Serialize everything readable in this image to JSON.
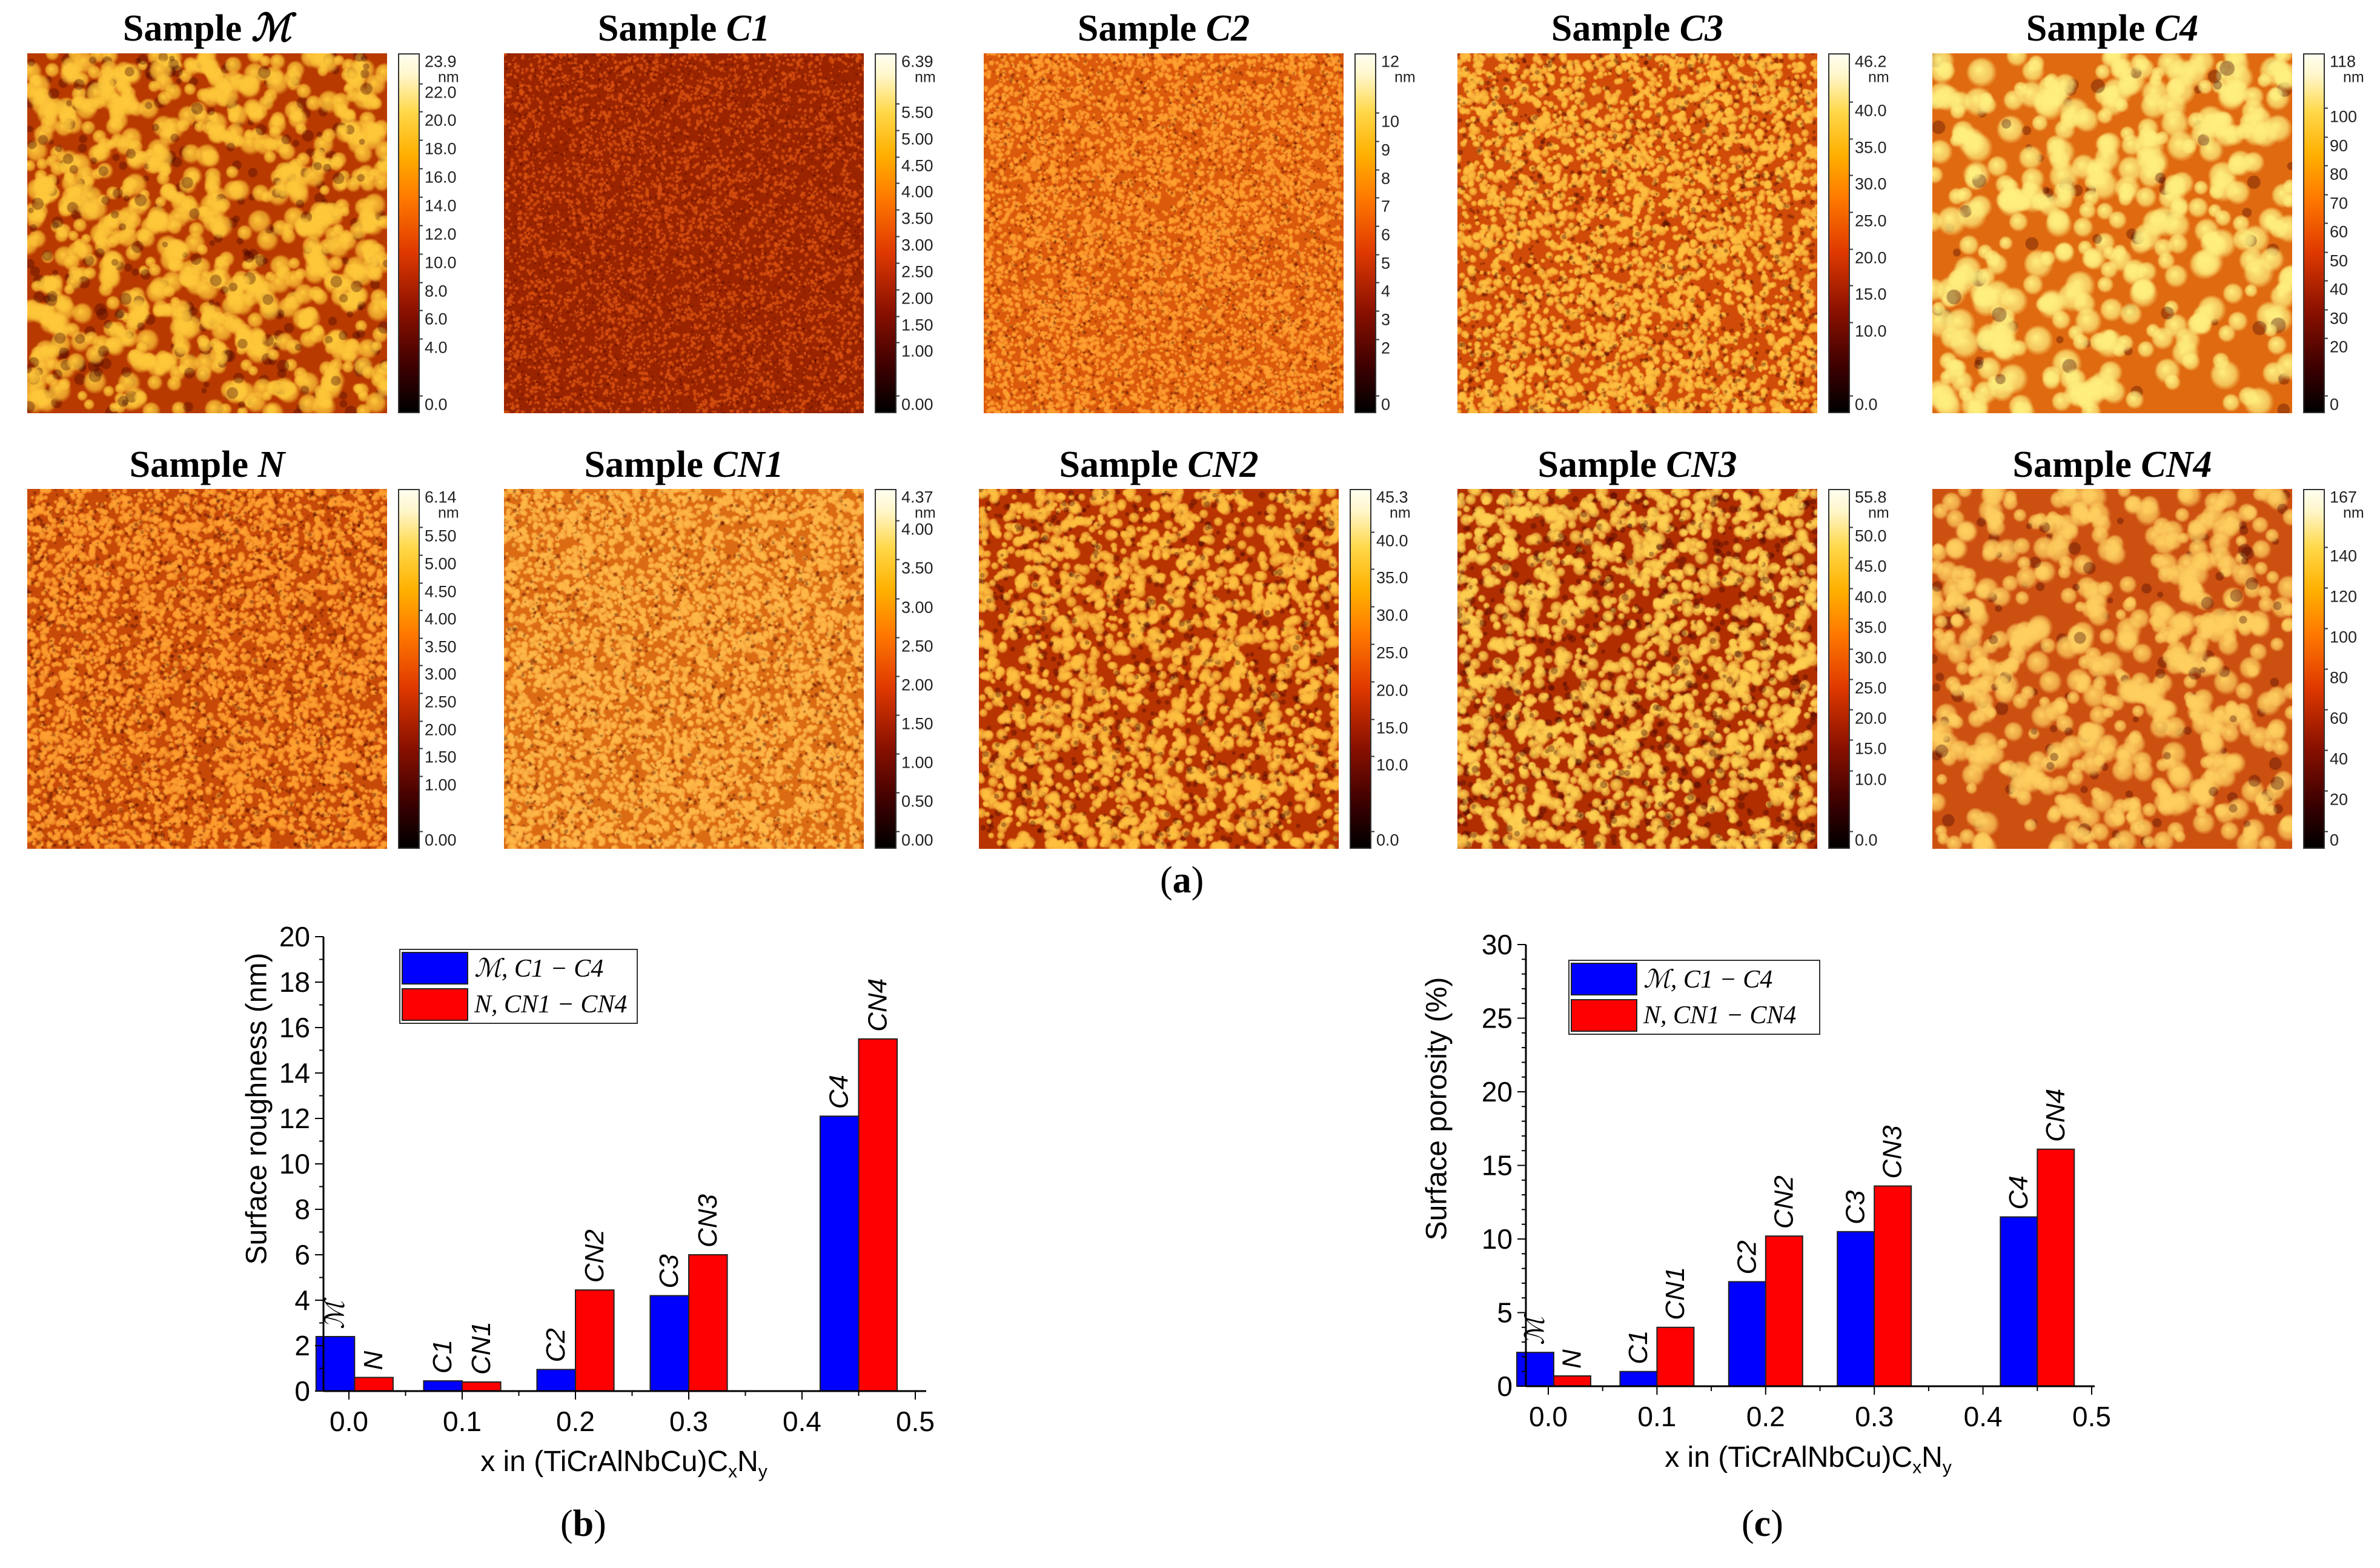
{
  "afm_panel": {
    "label": "a",
    "samples": [
      {
        "prefix": "Sample",
        "id": "ℳ",
        "max": "23.9",
        "unit": "nm",
        "ticks": [
          "22.0",
          "20.0",
          "18.0",
          "16.0",
          "14.0",
          "12.0",
          "10.0",
          "8.0",
          "6.0",
          "4.0",
          "0.0"
        ]
      },
      {
        "prefix": "Sample",
        "id": "C1",
        "max": "6.39",
        "unit": "nm",
        "ticks": [
          "5.50",
          "5.00",
          "4.50",
          "4.00",
          "3.50",
          "3.00",
          "2.50",
          "2.00",
          "1.50",
          "1.00",
          "0.00"
        ]
      },
      {
        "prefix": "Sample",
        "id": "C2",
        "max": "12",
        "unit": "nm",
        "ticks": [
          "10",
          "9",
          "8",
          "7",
          "6",
          "5",
          "4",
          "3",
          "2",
          "0"
        ]
      },
      {
        "prefix": "Sample",
        "id": "C3",
        "max": "46.2",
        "unit": "nm",
        "ticks": [
          "40.0",
          "35.0",
          "30.0",
          "25.0",
          "20.0",
          "15.0",
          "10.0",
          "0.0"
        ]
      },
      {
        "prefix": "Sample",
        "id": "C4",
        "max": "118",
        "unit": "nm",
        "ticks": [
          "100",
          "90",
          "80",
          "70",
          "60",
          "50",
          "40",
          "30",
          "20",
          "0"
        ]
      },
      {
        "prefix": "Sample",
        "id": "N",
        "max": "6.14",
        "unit": "nm",
        "ticks": [
          "5.50",
          "5.00",
          "4.50",
          "4.00",
          "3.50",
          "3.00",
          "2.50",
          "2.00",
          "1.50",
          "1.00",
          "0.00"
        ]
      },
      {
        "prefix": "Sample",
        "id": "CN1",
        "max": "4.37",
        "unit": "nm",
        "ticks": [
          "4.00",
          "3.50",
          "3.00",
          "2.50",
          "2.00",
          "1.50",
          "1.00",
          "0.50",
          "0.00"
        ]
      },
      {
        "prefix": "Sample",
        "id": "CN2",
        "max": "45.3",
        "unit": "nm",
        "ticks": [
          "40.0",
          "35.0",
          "30.0",
          "25.0",
          "20.0",
          "15.0",
          "10.0",
          "0.0"
        ]
      },
      {
        "prefix": "Sample",
        "id": "CN3",
        "max": "55.8",
        "unit": "nm",
        "ticks": [
          "50.0",
          "45.0",
          "40.0",
          "35.0",
          "30.0",
          "25.0",
          "20.0",
          "15.0",
          "10.0",
          "0.0"
        ]
      },
      {
        "prefix": "Sample",
        "id": "CN4",
        "max": "167",
        "unit": "nm",
        "ticks": [
          "140",
          "120",
          "100",
          "80",
          "60",
          "40",
          "20",
          "0"
        ]
      }
    ]
  },
  "chart_data": [
    {
      "type": "bar",
      "panel_label": "b",
      "title": "",
      "ylabel": "Surface roughness (nm)",
      "xlabel_parts": [
        "x in (TiCrAlNbCu)C",
        "x",
        "N",
        "y"
      ],
      "ylim": [
        0,
        20
      ],
      "y_major_step": 2,
      "xlim": [
        -0.02,
        0.51
      ],
      "x_ticks": [
        "0.0",
        "0.1",
        "0.2",
        "0.3",
        "0.4",
        "0.5"
      ],
      "group_x": [
        0.005,
        0.1,
        0.2,
        0.3,
        0.45
      ],
      "legend_position": "top-left",
      "series": [
        {
          "name": "ℳ, C1 − C4",
          "color": "#0000ff",
          "values": [
            2.4,
            0.45,
            0.95,
            4.2,
            12.1
          ],
          "labels": [
            "ℳ",
            "C1",
            "C2",
            "C3",
            "C4"
          ]
        },
        {
          "name": "N, CN1 − CN4",
          "color": "#ff0000",
          "values": [
            0.6,
            0.4,
            4.45,
            6.0,
            15.5
          ],
          "labels": [
            "N",
            "CN1",
            "CN2",
            "CN3",
            "CN4"
          ]
        }
      ]
    },
    {
      "type": "bar",
      "panel_label": "c",
      "title": "",
      "ylabel": "Surface porosity (%)",
      "xlabel_parts": [
        "x in (TiCrAlNbCu)C",
        "x",
        "N",
        "y"
      ],
      "ylim": [
        0,
        30
      ],
      "y_major_step": 5,
      "xlim": [
        -0.02,
        0.51
      ],
      "x_ticks": [
        "0.0",
        "0.1",
        "0.2",
        "0.3",
        "0.4",
        "0.5"
      ],
      "group_x": [
        0.005,
        0.1,
        0.2,
        0.3,
        0.45
      ],
      "legend_position": "top-left",
      "series": [
        {
          "name": "ℳ, C1 − C4",
          "color": "#0000ff",
          "values": [
            2.3,
            1.0,
            7.1,
            10.5,
            11.5
          ],
          "labels": [
            "ℳ",
            "C1",
            "C2",
            "C3",
            "C4"
          ]
        },
        {
          "name": "N, CN1 − CN4",
          "color": "#ff0000",
          "values": [
            0.7,
            4.0,
            10.2,
            13.6,
            16.1
          ],
          "labels": [
            "N",
            "CN1",
            "CN2",
            "CN3",
            "CN4"
          ]
        }
      ]
    }
  ]
}
